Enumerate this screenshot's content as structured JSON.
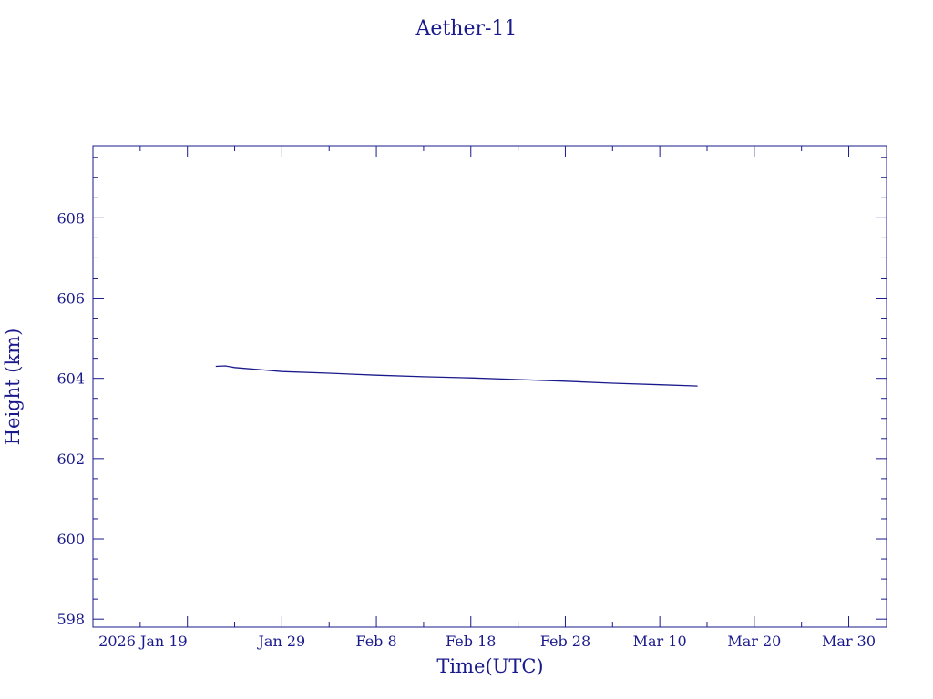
{
  "chart_data": {
    "type": "line",
    "title": "Aether-11",
    "xlabel": "Time(UTC)",
    "ylabel": "Height (km)",
    "ylim": [
      597.8,
      609.8
    ],
    "xlim": [
      "2026-01-09",
      "2026-04-03"
    ],
    "y_ticks": [
      598,
      600,
      602,
      604,
      606,
      608
    ],
    "y_tick_labels": [
      "598",
      "600",
      "602",
      "604",
      "606",
      "608"
    ],
    "x_ticks": [
      "2026-01-19",
      "2026-01-29",
      "2026-02-08",
      "2026-02-18",
      "2026-02-28",
      "2026-03-10",
      "2026-03-20",
      "2026-03-30"
    ],
    "x_tick_labels": [
      "2026 Jan 19",
      "Jan 29",
      "Feb  8",
      "Feb 18",
      "Feb 28",
      "Mar 10",
      "Mar 20",
      "Mar 30"
    ],
    "grid": false,
    "colors": {
      "axes": "#1a1a8c",
      "line": "#1a1a8c",
      "background": "#ffffff"
    },
    "series": [
      {
        "x": [
          "2026-01-22",
          "2026-01-23",
          "2026-01-24",
          "2026-01-25",
          "2026-01-27",
          "2026-01-29",
          "2026-02-03",
          "2026-02-08",
          "2026-02-13",
          "2026-02-18",
          "2026-02-23",
          "2026-02-28",
          "2026-03-05",
          "2026-03-10",
          "2026-03-14"
        ],
        "y": [
          604.3,
          604.31,
          604.27,
          604.25,
          604.21,
          604.17,
          604.13,
          604.08,
          604.04,
          604.01,
          603.97,
          603.93,
          603.88,
          603.84,
          603.81
        ]
      }
    ]
  }
}
